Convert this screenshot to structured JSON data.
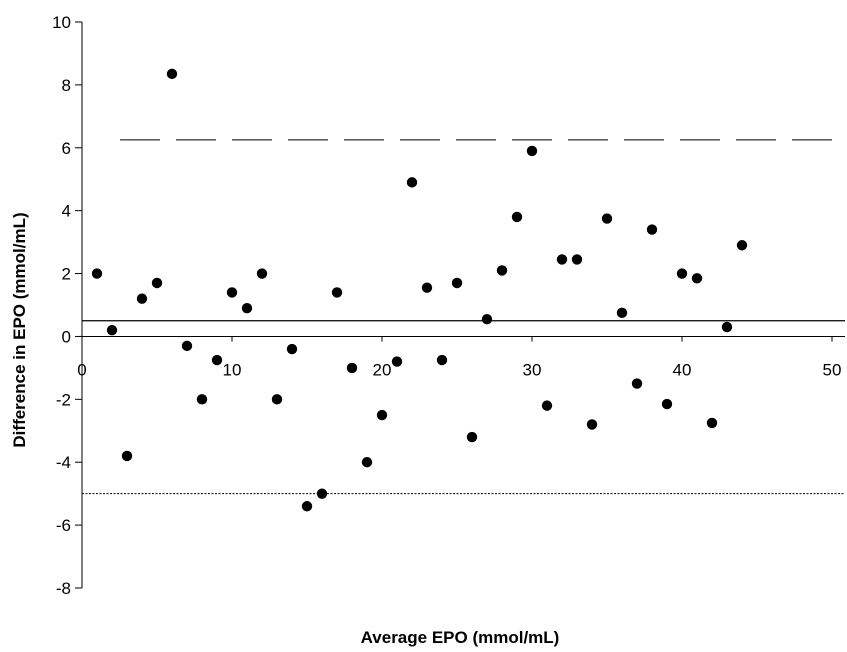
{
  "chart_data": {
    "type": "scatter",
    "title": "",
    "xlabel": "Average EPO (mmol/mL)",
    "ylabel": "Difference in EPO (mmol/mL)",
    "xlim": [
      0,
      50
    ],
    "ylim": [
      -8,
      10
    ],
    "x_ticks": [
      0,
      10,
      20,
      30,
      40,
      50
    ],
    "y_ticks": [
      -8,
      -6,
      -4,
      -2,
      0,
      2,
      4,
      6,
      8,
      10
    ],
    "grid": false,
    "legend": "none",
    "colors": {
      "points": "#000000",
      "lines": "#000000"
    },
    "reference_lines": {
      "mean": 0.5,
      "upper_limit": 6.25,
      "lower_limit": -5.0
    },
    "series": [
      {
        "x": [
          1,
          2,
          3,
          4,
          5,
          6,
          7,
          8,
          9,
          10,
          11,
          12,
          13,
          14,
          15,
          16,
          17,
          18,
          19,
          20,
          21,
          22,
          23,
          24,
          25,
          26,
          27,
          28,
          29,
          30,
          31,
          32,
          33,
          34,
          35,
          36,
          37,
          38,
          39,
          40,
          41,
          42,
          43,
          44
        ],
        "y": [
          2.0,
          0.2,
          -3.8,
          1.2,
          1.7,
          8.35,
          -0.3,
          -2.0,
          -0.75,
          1.4,
          0.9,
          2.0,
          -2.0,
          -0.4,
          -5.4,
          -5.0,
          1.4,
          -1.0,
          -4.0,
          -2.5,
          -0.8,
          4.9,
          1.55,
          -0.75,
          1.7,
          -3.2,
          0.55,
          2.1,
          3.8,
          5.9,
          -2.2,
          2.45,
          2.45,
          -2.8,
          3.75,
          0.75,
          -1.5,
          3.4,
          -2.15,
          2.0,
          1.85,
          -2.75,
          0.3,
          2.9
        ]
      }
    ]
  }
}
